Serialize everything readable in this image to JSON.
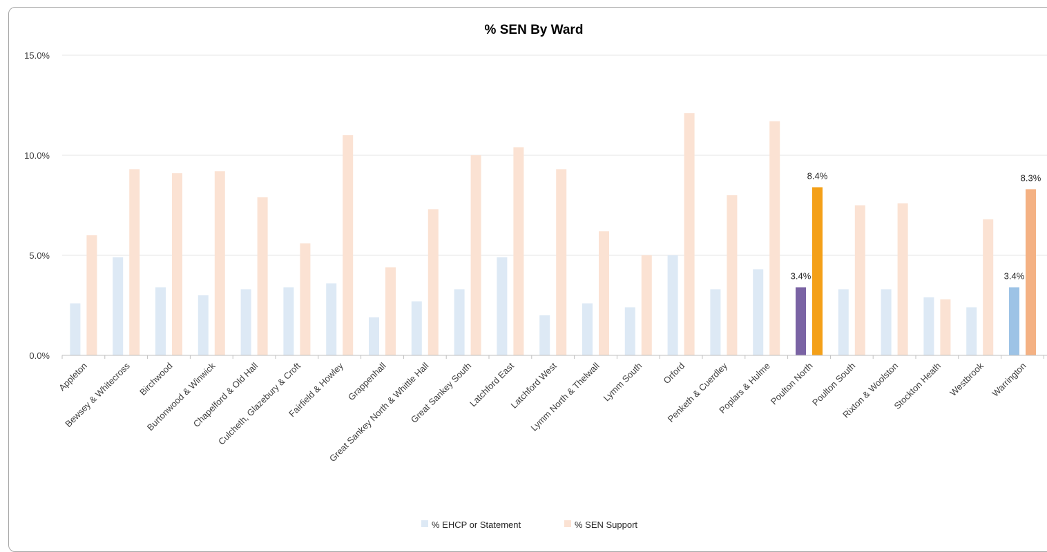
{
  "chart_data": {
    "type": "bar",
    "title": "% SEN By Ward",
    "xlabel": "",
    "ylabel": "",
    "ylim": [
      0,
      15
    ],
    "yticks": [
      "0.0%",
      "5.0%",
      "10.0%",
      "15.0%"
    ],
    "grid": true,
    "legend_position": "bottom",
    "categories": [
      "Appleton",
      "Bewsey & Whitecross",
      "Birchwood",
      "Burtonwood & Winwick",
      "Chapelford & Old Hall",
      "Culcheth, Glazebury & Croft",
      "Fairfield & Howley",
      "Grappenhall",
      "Great Sankey North & Whittle Hall",
      "Great Sankey South",
      "Latchford East",
      "Latchford West",
      "Lymm North & Thelwall",
      "Lymm South",
      "Orford",
      "Penketh & Cuerdley",
      "Poplars & Hulme",
      "Poulton North",
      "Poulton South",
      "Rixton & Woolston",
      "Stockton Heath",
      "Westbrook",
      "Warrington"
    ],
    "series": [
      {
        "name": "% EHCP or Statement",
        "color": "#dde9f5",
        "values": [
          2.6,
          4.9,
          3.4,
          3.0,
          3.3,
          3.4,
          3.6,
          1.9,
          2.7,
          3.3,
          4.9,
          2.0,
          2.6,
          2.4,
          5.0,
          3.3,
          4.3,
          3.4,
          3.3,
          3.3,
          2.9,
          2.4,
          3.4
        ]
      },
      {
        "name": "% SEN Support",
        "color": "#fbe2d3",
        "values": [
          6.0,
          9.3,
          9.1,
          9.2,
          7.9,
          5.6,
          11.0,
          4.4,
          7.3,
          10.0,
          10.4,
          9.3,
          6.2,
          5.0,
          12.1,
          8.0,
          11.7,
          8.4,
          7.5,
          7.6,
          2.8,
          6.8,
          8.3
        ]
      }
    ],
    "highlights": [
      {
        "category": "Poulton North",
        "series": 0,
        "color": "#7a63a4",
        "label": "3.4%"
      },
      {
        "category": "Poulton North",
        "series": 1,
        "color": "#f4a018",
        "label": "8.4%"
      },
      {
        "category": "Warrington",
        "series": 0,
        "color": "#9dc3e6",
        "label": "3.4%"
      },
      {
        "category": "Warrington",
        "series": 1,
        "color": "#f4b183",
        "label": "8.3%"
      }
    ]
  }
}
